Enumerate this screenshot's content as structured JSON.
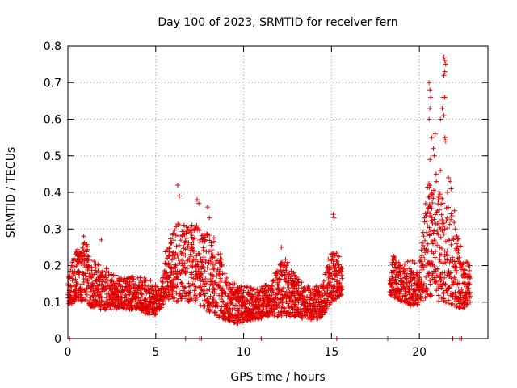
{
  "chart_data": {
    "type": "scatter",
    "title": "Day 100 of 2023, SRMTID for receiver fern",
    "xlabel": "GPS time / hours",
    "ylabel": "SRMTID / TECUs",
    "xlim": [
      0,
      23.9
    ],
    "ylim": [
      0,
      0.8
    ],
    "xticks": [
      0,
      5,
      10,
      15,
      20
    ],
    "yticks": [
      0,
      0.1,
      0.2,
      0.3,
      0.4,
      0.5,
      0.6,
      0.7,
      0.8
    ],
    "xtick_labels": [
      "0",
      "5",
      "10",
      "15",
      "20"
    ],
    "ytick_labels": [
      "0",
      "0.1",
      "0.2",
      "0.3",
      "0.4",
      "0.5",
      "0.6",
      "0.7",
      "0.8"
    ],
    "grid": true,
    "marker": "plus",
    "color": "#e00000",
    "gap_hours": [
      15.6,
      18.3
    ],
    "envelope": [
      {
        "t": 0.0,
        "lo": 0.09,
        "hi": 0.2
      },
      {
        "t": 0.5,
        "lo": 0.1,
        "hi": 0.24
      },
      {
        "t": 1.0,
        "lo": 0.1,
        "hi": 0.27
      },
      {
        "t": 1.5,
        "lo": 0.08,
        "hi": 0.21
      },
      {
        "t": 2.0,
        "lo": 0.08,
        "hi": 0.2
      },
      {
        "t": 3.0,
        "lo": 0.08,
        "hi": 0.17
      },
      {
        "t": 4.0,
        "lo": 0.08,
        "hi": 0.17
      },
      {
        "t": 4.7,
        "lo": 0.06,
        "hi": 0.17
      },
      {
        "t": 5.2,
        "lo": 0.07,
        "hi": 0.14
      },
      {
        "t": 5.6,
        "lo": 0.11,
        "hi": 0.25
      },
      {
        "t": 6.2,
        "lo": 0.1,
        "hi": 0.32
      },
      {
        "t": 6.8,
        "lo": 0.1,
        "hi": 0.31
      },
      {
        "t": 7.3,
        "lo": 0.1,
        "hi": 0.32
      },
      {
        "t": 7.8,
        "lo": 0.08,
        "hi": 0.3
      },
      {
        "t": 8.5,
        "lo": 0.06,
        "hi": 0.27
      },
      {
        "t": 9.0,
        "lo": 0.05,
        "hi": 0.17
      },
      {
        "t": 9.6,
        "lo": 0.04,
        "hi": 0.15
      },
      {
        "t": 10.5,
        "lo": 0.05,
        "hi": 0.14
      },
      {
        "t": 11.5,
        "lo": 0.06,
        "hi": 0.15
      },
      {
        "t": 12.3,
        "lo": 0.06,
        "hi": 0.23
      },
      {
        "t": 13.0,
        "lo": 0.06,
        "hi": 0.17
      },
      {
        "t": 13.8,
        "lo": 0.05,
        "hi": 0.14
      },
      {
        "t": 14.5,
        "lo": 0.06,
        "hi": 0.15
      },
      {
        "t": 15.0,
        "lo": 0.1,
        "hi": 0.26
      },
      {
        "t": 15.6,
        "lo": 0.12,
        "hi": 0.21
      },
      {
        "t": 18.3,
        "lo": 0.12,
        "hi": 0.24
      },
      {
        "t": 19.0,
        "lo": 0.1,
        "hi": 0.2
      },
      {
        "t": 19.5,
        "lo": 0.09,
        "hi": 0.22
      },
      {
        "t": 20.0,
        "lo": 0.09,
        "hi": 0.2
      },
      {
        "t": 20.5,
        "lo": 0.12,
        "hi": 0.44
      },
      {
        "t": 21.0,
        "lo": 0.1,
        "hi": 0.43
      },
      {
        "t": 21.5,
        "lo": 0.1,
        "hi": 0.38
      },
      {
        "t": 22.0,
        "lo": 0.09,
        "hi": 0.33
      },
      {
        "t": 22.5,
        "lo": 0.08,
        "hi": 0.22
      },
      {
        "t": 22.9,
        "lo": 0.1,
        "hi": 0.2
      }
    ],
    "spikes": [
      {
        "x": 0.9,
        "y": 0.28
      },
      {
        "x": 1.9,
        "y": 0.27
      },
      {
        "x": 6.25,
        "y": 0.42
      },
      {
        "x": 6.35,
        "y": 0.39
      },
      {
        "x": 7.35,
        "y": 0.38
      },
      {
        "x": 7.45,
        "y": 0.37
      },
      {
        "x": 7.95,
        "y": 0.36
      },
      {
        "x": 8.05,
        "y": 0.33
      },
      {
        "x": 12.15,
        "y": 0.25
      },
      {
        "x": 15.1,
        "y": 0.34
      },
      {
        "x": 15.15,
        "y": 0.33
      },
      {
        "x": 20.55,
        "y": 0.7
      },
      {
        "x": 20.6,
        "y": 0.68
      },
      {
        "x": 20.65,
        "y": 0.66
      },
      {
        "x": 20.6,
        "y": 0.63
      },
      {
        "x": 20.55,
        "y": 0.6
      },
      {
        "x": 20.7,
        "y": 0.55
      },
      {
        "x": 20.8,
        "y": 0.52
      },
      {
        "x": 20.9,
        "y": 0.56
      },
      {
        "x": 20.85,
        "y": 0.5
      },
      {
        "x": 20.6,
        "y": 0.49
      },
      {
        "x": 21.2,
        "y": 0.46
      },
      {
        "x": 20.95,
        "y": 0.45
      },
      {
        "x": 21.3,
        "y": 0.63
      },
      {
        "x": 21.35,
        "y": 0.66
      },
      {
        "x": 21.2,
        "y": 0.6
      },
      {
        "x": 21.4,
        "y": 0.77
      },
      {
        "x": 21.45,
        "y": 0.76
      },
      {
        "x": 21.5,
        "y": 0.75
      },
      {
        "x": 21.45,
        "y": 0.73
      },
      {
        "x": 21.4,
        "y": 0.72
      },
      {
        "x": 21.45,
        "y": 0.66
      },
      {
        "x": 21.4,
        "y": 0.61
      },
      {
        "x": 21.45,
        "y": 0.55
      },
      {
        "x": 21.5,
        "y": 0.54
      },
      {
        "x": 21.65,
        "y": 0.44
      },
      {
        "x": 21.75,
        "y": 0.43
      },
      {
        "x": 21.8,
        "y": 0.41
      },
      {
        "x": 21.6,
        "y": 0.4
      },
      {
        "x": 22.0,
        "y": 0.35
      },
      {
        "x": 22.05,
        "y": 0.3
      },
      {
        "x": 20.6,
        "y": 0.42
      },
      {
        "x": 20.7,
        "y": 0.4
      },
      {
        "x": 21.1,
        "y": 0.39
      },
      {
        "x": 22.1,
        "y": 0.26
      }
    ],
    "sparse_lows": [
      {
        "x": 0.1,
        "y": 0.0
      },
      {
        "x": 6.7,
        "y": 0.0
      },
      {
        "x": 7.5,
        "y": 0.0
      },
      {
        "x": 7.6,
        "y": 0.0
      },
      {
        "x": 11.0,
        "y": 0.0
      },
      {
        "x": 11.1,
        "y": 0.0
      },
      {
        "x": 15.3,
        "y": 0.0
      },
      {
        "x": 18.2,
        "y": 0.0
      },
      {
        "x": 21.9,
        "y": 0.0
      },
      {
        "x": 22.3,
        "y": 0.0
      },
      {
        "x": 22.4,
        "y": 0.0
      }
    ],
    "seed": 2023100,
    "sample_step_hours": 0.014
  }
}
